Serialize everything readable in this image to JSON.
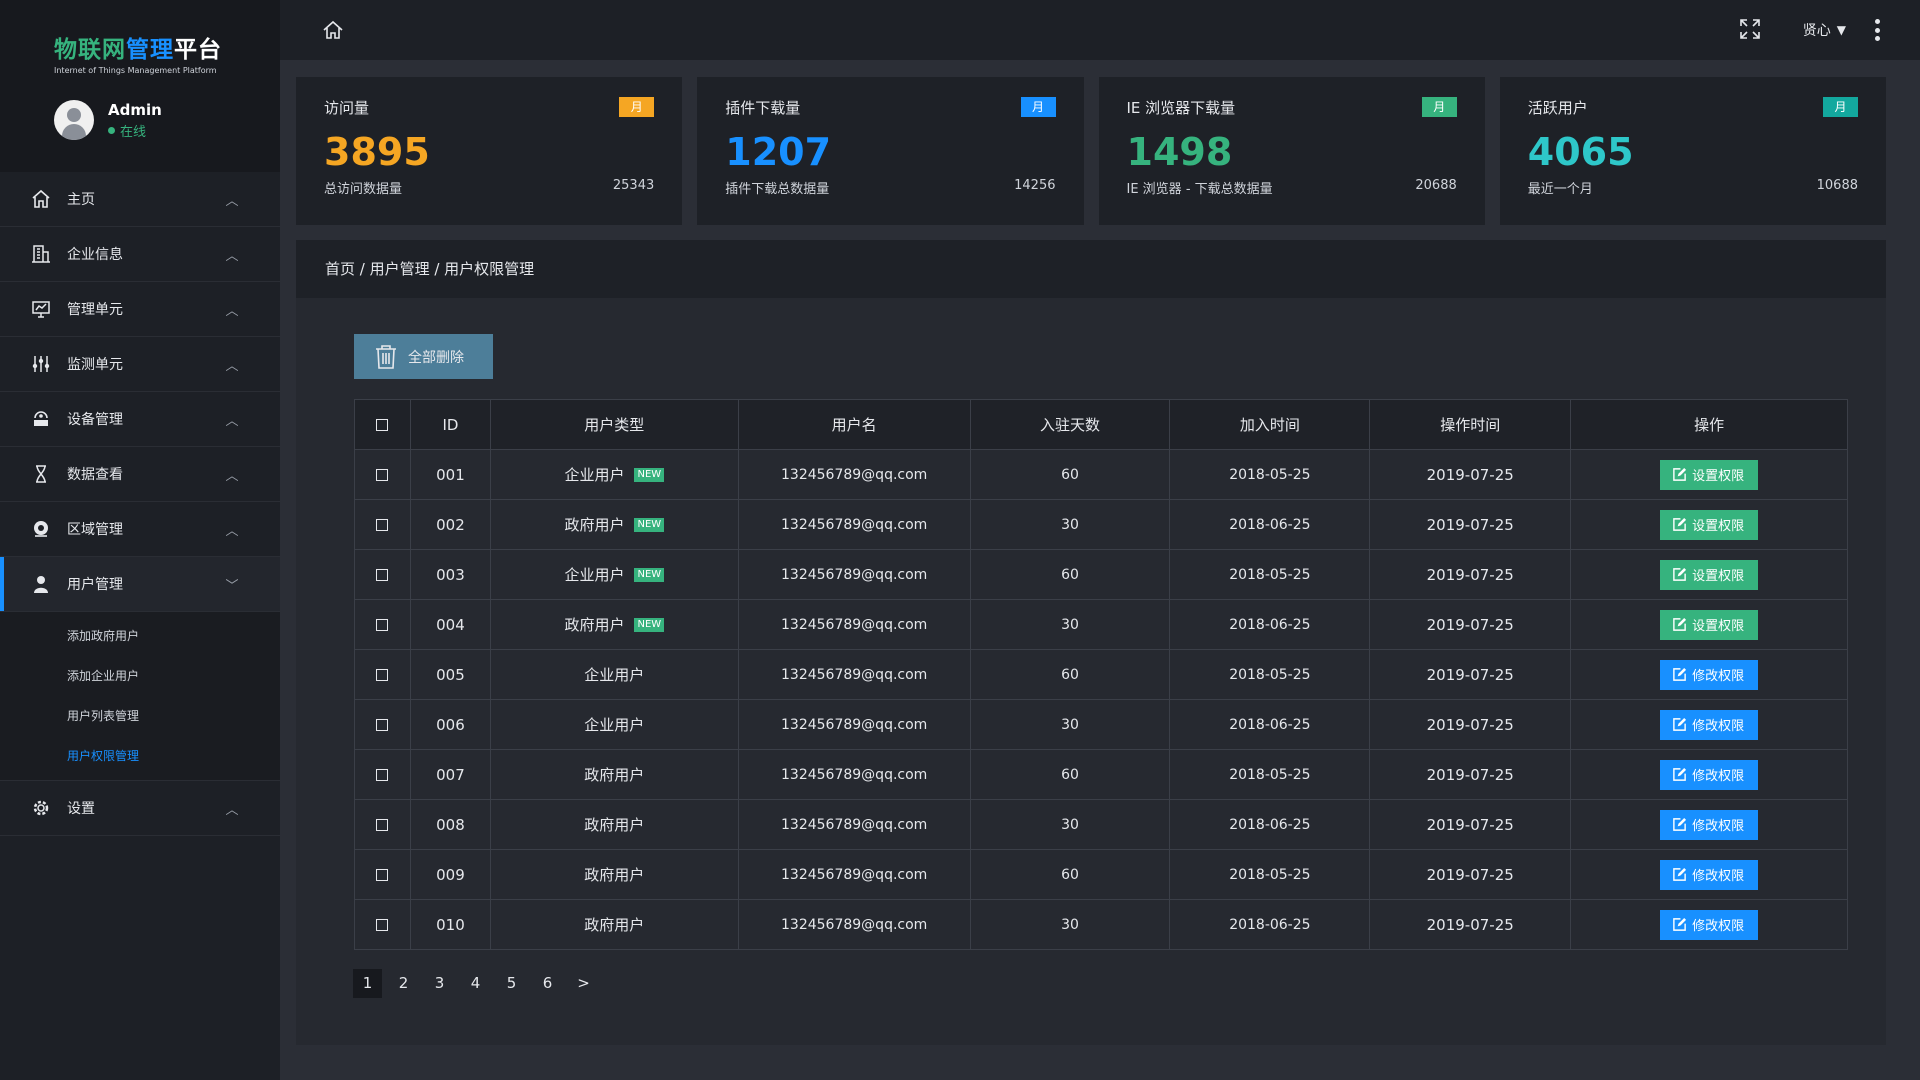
{
  "brand": {
    "title_part1": "物联网",
    "title_part2": "管理",
    "title_part3": "平台",
    "subtitle": "Internet of Things Management Platform"
  },
  "user": {
    "name": "Admin",
    "status": "在线"
  },
  "sidebar": {
    "items": [
      {
        "label": "主页",
        "icon": "home-icon"
      },
      {
        "label": "企业信息",
        "icon": "building-icon"
      },
      {
        "label": "管理单元",
        "icon": "monitor-chart-icon"
      },
      {
        "label": "监测单元",
        "icon": "sliders-icon"
      },
      {
        "label": "设备管理",
        "icon": "device-icon"
      },
      {
        "label": "数据查看",
        "icon": "hourglass-icon"
      },
      {
        "label": "区域管理",
        "icon": "location-icon"
      },
      {
        "label": "用户管理",
        "icon": "user-icon"
      },
      {
        "label": "设置",
        "icon": "gear-icon"
      }
    ],
    "sub_items": [
      "添加政府用户",
      "添加企业用户",
      "用户列表管理",
      "用户权限管理"
    ]
  },
  "topbar": {
    "username": "贤心"
  },
  "cards": [
    {
      "title": "访问量",
      "badge": "月",
      "value": "3895",
      "foot_label": "总访问数据量",
      "foot_value": "25343",
      "color": "#f5a623",
      "badge_color": "#f5a623"
    },
    {
      "title": "插件下载量",
      "badge": "月",
      "value": "1207",
      "foot_label": "插件下载总数据量",
      "foot_value": "14256",
      "color": "#1890ff",
      "badge_color": "#1890ff"
    },
    {
      "title": "IE 浏览器下载量",
      "badge": "月",
      "value": "1498",
      "foot_label": "IE 浏览器 - 下载总数据量",
      "foot_value": "20688",
      "color": "#36b37e",
      "badge_color": "#36b37e"
    },
    {
      "title": "活跃用户",
      "badge": "月",
      "value": "4065",
      "foot_label": "最近一个月",
      "foot_value": "10688",
      "color": "#2ec7c9",
      "badge_color": "#13a89e"
    }
  ],
  "breadcrumb": "首页 / 用户管理 / 用户权限管理",
  "toolbar": {
    "delete_all": "全部删除"
  },
  "table": {
    "headers": [
      "ID",
      "用户类型",
      "用户名",
      "入驻天数",
      "加入时间",
      "操作时间",
      "操作"
    ],
    "rows": [
      {
        "id": "001",
        "type": "企业用户",
        "new": "NEW",
        "username": "132456789@qq.com",
        "days": "60",
        "joined": "2018-05-25",
        "operated": "2019-07-25",
        "action": "设置权限",
        "action_color": "green"
      },
      {
        "id": "002",
        "type": "政府用户",
        "new": "NEW",
        "username": "132456789@qq.com",
        "days": "30",
        "joined": "2018-06-25",
        "operated": "2019-07-25",
        "action": "设置权限",
        "action_color": "green"
      },
      {
        "id": "003",
        "type": "企业用户",
        "new": "NEW",
        "username": "132456789@qq.com",
        "days": "60",
        "joined": "2018-05-25",
        "operated": "2019-07-25",
        "action": "设置权限",
        "action_color": "green"
      },
      {
        "id": "004",
        "type": "政府用户",
        "new": "NEW",
        "username": "132456789@qq.com",
        "days": "30",
        "joined": "2018-06-25",
        "operated": "2019-07-25",
        "action": "设置权限",
        "action_color": "green"
      },
      {
        "id": "005",
        "type": "企业用户",
        "new": "",
        "username": "132456789@qq.com",
        "days": "60",
        "joined": "2018-05-25",
        "operated": "2019-07-25",
        "action": "修改权限",
        "action_color": "blue"
      },
      {
        "id": "006",
        "type": "企业用户",
        "new": "",
        "username": "132456789@qq.com",
        "days": "30",
        "joined": "2018-06-25",
        "operated": "2019-07-25",
        "action": "修改权限",
        "action_color": "blue"
      },
      {
        "id": "007",
        "type": "政府用户",
        "new": "",
        "username": "132456789@qq.com",
        "days": "60",
        "joined": "2018-05-25",
        "operated": "2019-07-25",
        "action": "修改权限",
        "action_color": "blue"
      },
      {
        "id": "008",
        "type": "政府用户",
        "new": "",
        "username": "132456789@qq.com",
        "days": "30",
        "joined": "2018-06-25",
        "operated": "2019-07-25",
        "action": "修改权限",
        "action_color": "blue"
      },
      {
        "id": "009",
        "type": "政府用户",
        "new": "",
        "username": "132456789@qq.com",
        "days": "60",
        "joined": "2018-05-25",
        "operated": "2019-07-25",
        "action": "修改权限",
        "action_color": "blue"
      },
      {
        "id": "010",
        "type": "政府用户",
        "new": "",
        "username": "132456789@qq.com",
        "days": "30",
        "joined": "2018-06-25",
        "operated": "2019-07-25",
        "action": "修改权限",
        "action_color": "blue"
      }
    ]
  },
  "pagination": {
    "pages": [
      "1",
      "2",
      "3",
      "4",
      "5",
      "6"
    ],
    "next": ">",
    "current": "1"
  }
}
